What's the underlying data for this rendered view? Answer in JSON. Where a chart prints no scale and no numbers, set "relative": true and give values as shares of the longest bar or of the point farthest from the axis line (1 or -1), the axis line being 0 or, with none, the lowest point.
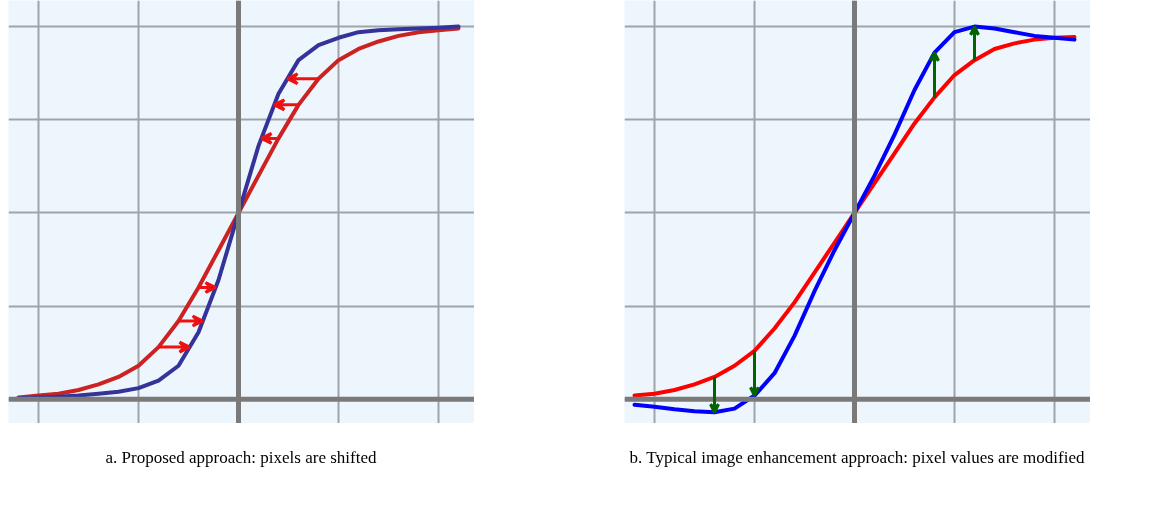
{
  "chart_data": [
    {
      "type": "line",
      "relative": true,
      "grid": true,
      "categories": [
        null,
        null,
        null,
        null,
        null,
        null,
        null,
        null,
        null,
        null,
        null,
        null,
        null,
        null,
        null,
        null,
        null,
        null,
        null,
        null,
        null,
        null,
        null
      ],
      "series": [
        {
          "color": "#cc2222",
          "values": [
            0.005,
            0.01,
            0.015,
            0.025,
            0.04,
            0.06,
            0.09,
            0.14,
            0.21,
            0.3,
            0.4,
            0.5,
            0.6,
            0.7,
            0.79,
            0.86,
            0.91,
            0.94,
            0.96,
            0.975,
            0.985,
            0.99,
            0.995
          ]
        },
        {
          "color": "#333399",
          "values": [
            0.003,
            0.005,
            0.007,
            0.01,
            0.015,
            0.02,
            0.03,
            0.05,
            0.09,
            0.18,
            0.32,
            0.5,
            0.68,
            0.82,
            0.91,
            0.95,
            0.97,
            0.985,
            0.99,
            0.993,
            0.995,
            0.997,
            1.0
          ]
        }
      ],
      "annotations": [
        "a. Proposed approach: pixels are shifted"
      ]
    },
    {
      "type": "line",
      "relative": true,
      "grid": true,
      "categories": [
        null,
        null,
        null,
        null,
        null,
        null,
        null,
        null,
        null,
        null,
        null,
        null,
        null,
        null,
        null,
        null,
        null,
        null,
        null,
        null,
        null,
        null,
        null
      ],
      "series": [
        {
          "color": "#ff0000",
          "values": [
            0.01,
            0.015,
            0.025,
            0.04,
            0.06,
            0.09,
            0.13,
            0.19,
            0.26,
            0.34,
            0.42,
            0.5,
            0.58,
            0.66,
            0.74,
            0.81,
            0.87,
            0.91,
            0.94,
            0.955,
            0.965,
            0.97,
            0.972
          ]
        },
        {
          "color": "#0000ff",
          "values": [
            -0.015,
            -0.02,
            -0.027,
            -0.032,
            -0.035,
            -0.025,
            0.01,
            0.07,
            0.17,
            0.29,
            0.4,
            0.5,
            0.6,
            0.71,
            0.83,
            0.93,
            0.985,
            1.0,
            0.995,
            0.985,
            0.975,
            0.97,
            0.965
          ]
        }
      ],
      "annotations": [
        "b. Typical image enhancement approach: pixel values are modified"
      ]
    }
  ]
}
